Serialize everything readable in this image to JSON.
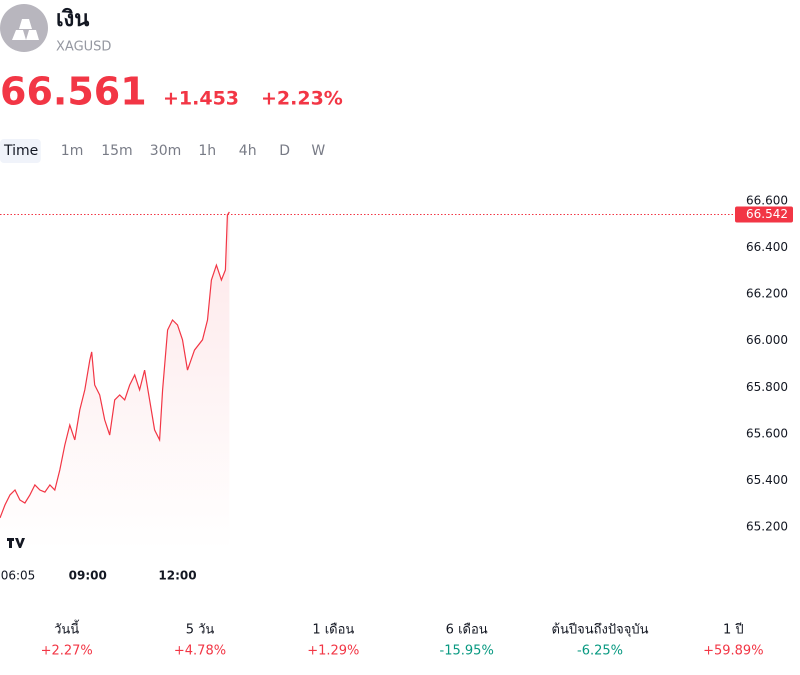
{
  "header": {
    "title": "เงิน",
    "symbol": "XAGUSD"
  },
  "quote": {
    "price": "66.561",
    "change": "+1.453",
    "change_percent": "+2.23%",
    "color": "#f23645"
  },
  "timeframes": [
    "Time",
    "1m",
    "15m",
    "30m",
    "1h",
    "4h",
    "D",
    "W"
  ],
  "chart_data": {
    "type": "line",
    "color": "#f23645",
    "x": [
      6.067,
      6.233,
      6.4,
      6.567,
      6.733,
      6.9,
      7.067,
      7.233,
      7.4,
      7.567,
      7.733,
      7.9,
      8.067,
      8.233,
      8.4,
      8.567,
      8.733,
      8.9,
      9.067,
      9.133,
      9.233,
      9.4,
      9.567,
      9.733,
      9.9,
      10.067,
      10.233,
      10.4,
      10.567,
      10.733,
      10.9,
      11.067,
      11.233,
      11.4,
      11.5,
      11.667,
      11.833,
      12,
      12.167,
      12.333,
      12.567,
      12.833,
      13,
      13.133,
      13.3,
      13.467,
      13.6,
      13.667,
      13.733
    ],
    "values": [
      65.239,
      65.295,
      65.338,
      65.359,
      65.316,
      65.303,
      65.338,
      65.381,
      65.359,
      65.35,
      65.381,
      65.359,
      65.445,
      65.552,
      65.638,
      65.574,
      65.703,
      65.789,
      65.917,
      65.952,
      65.81,
      65.767,
      65.66,
      65.595,
      65.746,
      65.767,
      65.746,
      65.81,
      65.853,
      65.789,
      65.874,
      65.746,
      65.617,
      65.574,
      65.789,
      66.046,
      66.089,
      66.068,
      66.004,
      65.874,
      65.96,
      66.004,
      66.089,
      66.261,
      66.325,
      66.261,
      66.304,
      66.54,
      66.553
    ],
    "xlim": [
      6.067,
      30.63
    ],
    "xticks": [
      {
        "value": 6.067,
        "label": "06:05"
      },
      {
        "value": 9,
        "label": "09:00"
      },
      {
        "value": 12,
        "label": "12:00"
      }
    ],
    "ylim": [
      65.1,
      66.65
    ],
    "yticks": [
      {
        "value": 65.2,
        "label": "65.200"
      },
      {
        "value": 65.4,
        "label": "65.400"
      },
      {
        "value": 65.6,
        "label": "65.600"
      },
      {
        "value": 65.8,
        "label": "65.800"
      },
      {
        "value": 66,
        "label": "66.000"
      },
      {
        "value": 66.2,
        "label": "66.200"
      },
      {
        "value": 66.4,
        "label": "66.400"
      },
      {
        "value": 66.6,
        "label": "66.600"
      }
    ],
    "price_line": {
      "value": 66.542,
      "label": "66.542"
    }
  },
  "performance": [
    {
      "label": "วันนี้",
      "value": "+2.27%",
      "color": "#f23645"
    },
    {
      "label": "5 วัน",
      "value": "+4.78%",
      "color": "#f23645"
    },
    {
      "label": "1 เดือน",
      "value": "+1.29%",
      "color": "#f23645"
    },
    {
      "label": "6 เดือน",
      "value": "-15.95%",
      "color": "#089981"
    },
    {
      "label": "ต้นปีจนถึงปัจจุบัน",
      "value": "-6.25%",
      "color": "#089981"
    },
    {
      "label": "1 ปี",
      "value": "+59.89%",
      "color": "#f23645"
    }
  ]
}
